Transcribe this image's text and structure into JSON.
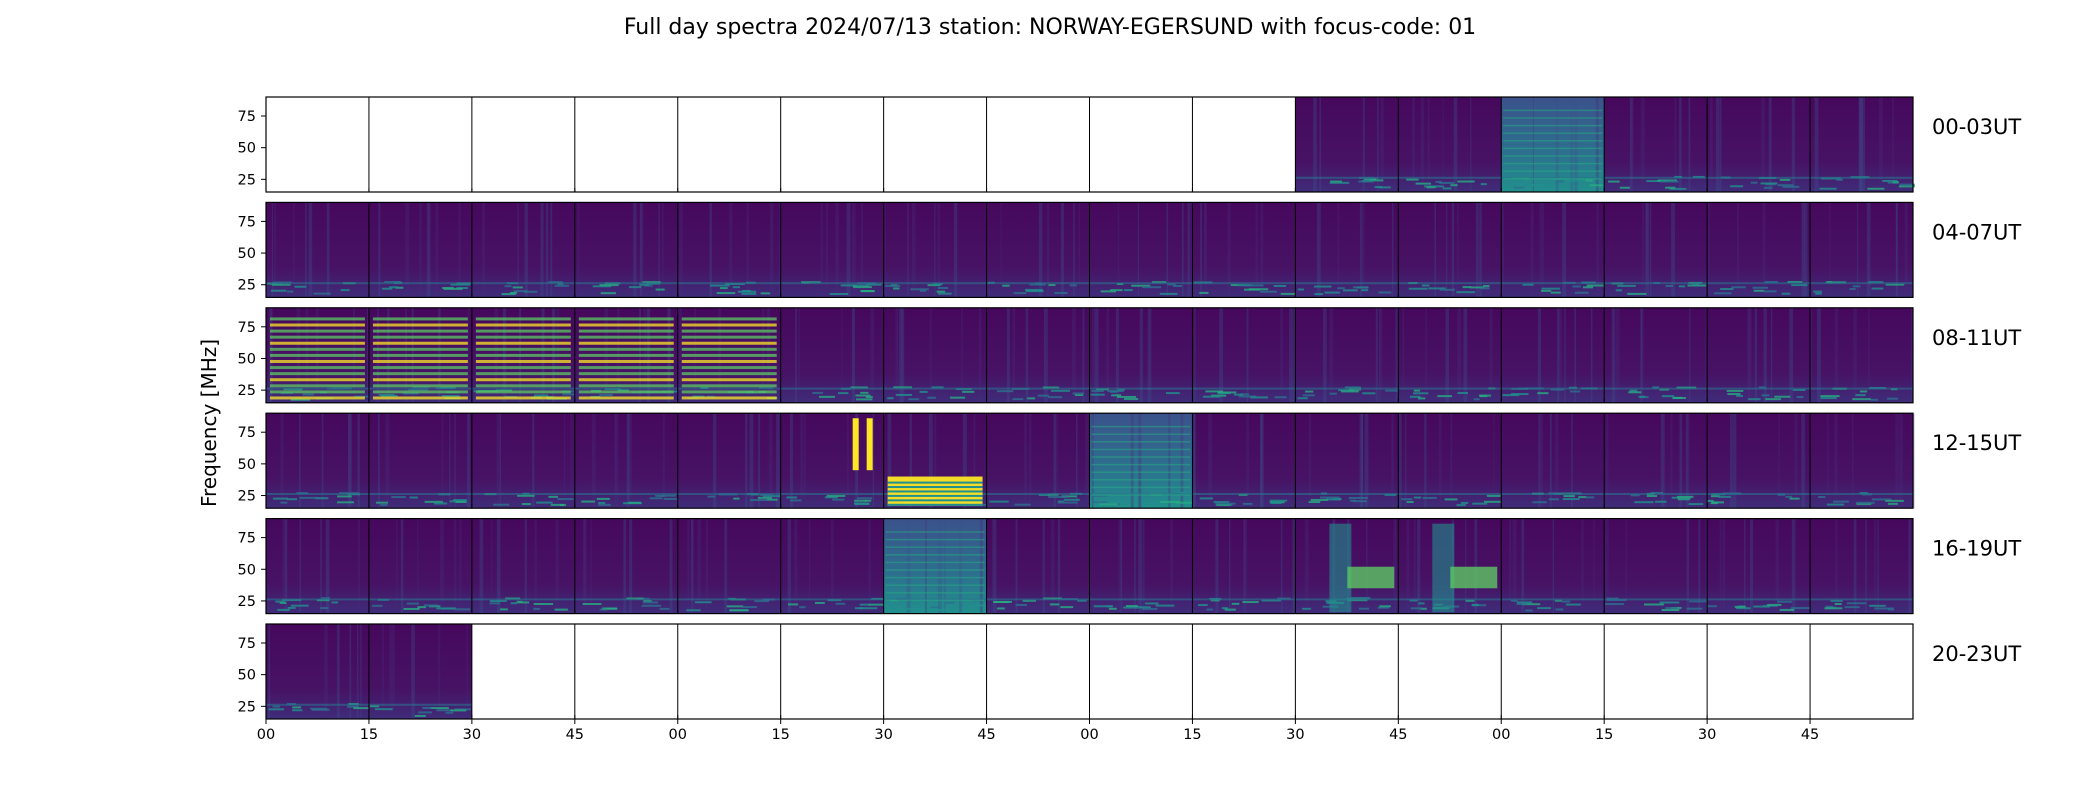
{
  "chart_data": {
    "type": "heatmap",
    "title": "Full day spectra 2024/07/13 station: NORWAY-EGERSUND with focus-code: 01",
    "ylabel": "Frequency [MHz]",
    "y_ticks": [
      "75",
      "50",
      "25"
    ],
    "y_tick_values": [
      75,
      50,
      25
    ],
    "ylim": [
      15,
      90
    ],
    "x_tick_labels": [
      "00",
      "15",
      "30",
      "45",
      "00",
      "15",
      "30",
      "45",
      "00",
      "15",
      "30",
      "45",
      "00",
      "15",
      "30",
      "45"
    ],
    "colormap": "viridis",
    "colors": {
      "low": "#440154",
      "mid": "#21918c",
      "high": "#fde725"
    },
    "grid": false,
    "rows": [
      {
        "label": "00-03UT",
        "panels": [
          "none",
          "none",
          "none",
          "none",
          "none",
          "none",
          "none",
          "none",
          "none",
          "none",
          "quiet",
          "quiet",
          "busy",
          "quiet",
          "quiet",
          "quiet"
        ]
      },
      {
        "label": "04-07UT",
        "panels": [
          "quiet",
          "quiet",
          "quiet",
          "quiet",
          "quiet",
          "quiet",
          "quiet",
          "quiet",
          "quiet",
          "quiet",
          "quiet",
          "quiet",
          "quiet",
          "quiet",
          "quiet",
          "quiet"
        ]
      },
      {
        "label": "08-11UT",
        "panels": [
          "striped",
          "striped",
          "striped",
          "striped",
          "striped",
          "quiet",
          "quiet",
          "quiet",
          "quiet",
          "quiet",
          "quiet",
          "quiet",
          "quiet",
          "quiet",
          "quiet",
          "quiet"
        ]
      },
      {
        "label": "12-15UT",
        "panels": [
          "quiet",
          "quiet",
          "quiet",
          "quiet",
          "quiet",
          "burst",
          "strong",
          "quiet",
          "busy",
          "quiet",
          "quiet",
          "quiet",
          "quiet",
          "quiet",
          "quiet",
          "quiet"
        ]
      },
      {
        "label": "16-19UT",
        "panels": [
          "quiet",
          "quiet",
          "quiet",
          "quiet",
          "quiet",
          "quiet",
          "busy",
          "quiet",
          "quiet",
          "quiet",
          "band",
          "band",
          "quiet",
          "quiet",
          "quiet",
          "quiet"
        ]
      },
      {
        "label": "20-23UT",
        "panels": [
          "quiet",
          "quiet",
          "none",
          "none",
          "none",
          "none",
          "none",
          "none",
          "none",
          "none",
          "none",
          "none",
          "none",
          "none",
          "none",
          "none"
        ]
      }
    ]
  }
}
